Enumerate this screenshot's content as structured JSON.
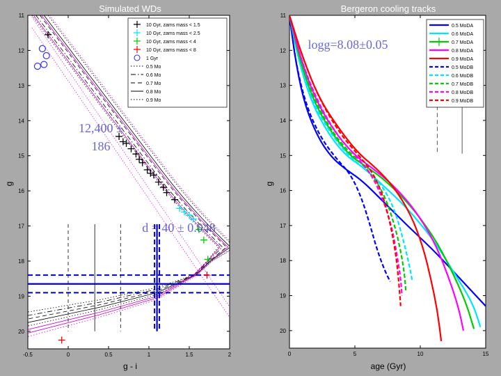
{
  "chart_data": [
    {
      "type": "scatter",
      "title": "Simulated WDs",
      "xlabel": "g - i",
      "ylabel": "g",
      "xlim": [
        -0.5,
        2
      ],
      "ylim": [
        20.5,
        11
      ],
      "y_inverted": true,
      "xticks": [
        "-0.5",
        "0",
        "0.5",
        "1",
        "1.5",
        "2"
      ],
      "xtick_values": [
        -0.5,
        0,
        0.5,
        1,
        1.5,
        2
      ],
      "yticks": [
        "11",
        "12",
        "13",
        "14",
        "15",
        "16",
        "17",
        "18",
        "19",
        "20"
      ],
      "ytick_values": [
        11,
        12,
        13,
        14,
        15,
        16,
        17,
        18,
        19,
        20
      ],
      "legend_position": "top-right",
      "legend": [
        {
          "label": "10 Gyr, zams mass < 1.5",
          "marker": "plus",
          "color": "#000000"
        },
        {
          "label": "10 Gyr, zams mass < 2.5",
          "marker": "plus",
          "color": "#00e5ff"
        },
        {
          "label": "10 Gyr, zams mass < 4",
          "marker": "plus",
          "color": "#00cc00"
        },
        {
          "label": "10 Gyr, zams mass < 8",
          "marker": "plus",
          "color": "#ff0000"
        },
        {
          "label": "1 Gyr",
          "marker": "circle",
          "color": "#3333ff"
        },
        {
          "label": "0.5 Mo",
          "line": "dotted",
          "color": "#000000"
        },
        {
          "label": "0.6 Mo",
          "line": "dashdot",
          "color": "#000000"
        },
        {
          "label": "0.7 Mo",
          "line": "dashed",
          "color": "#000000"
        },
        {
          "label": "0.8 Mo",
          "line": "solid",
          "color": "#000000"
        },
        {
          "label": "0.9 Mo",
          "line": "dotted",
          "color": "#000000"
        }
      ],
      "series": [
        {
          "name": "10 Gyr, zams mass < 1.5",
          "color": "#000000",
          "marker": "plus",
          "points": [
            [
              -0.25,
              11.55
            ],
            [
              0.63,
              14.45
            ],
            [
              0.68,
              14.6
            ],
            [
              0.72,
              14.65
            ],
            [
              0.78,
              14.8
            ],
            [
              0.84,
              14.95
            ],
            [
              0.88,
              15.1
            ],
            [
              0.92,
              15.2
            ],
            [
              0.98,
              15.4
            ],
            [
              1.02,
              15.5
            ],
            [
              1.06,
              15.55
            ],
            [
              1.12,
              15.75
            ],
            [
              1.18,
              15.9
            ],
            [
              1.22,
              16.05
            ],
            [
              1.32,
              16.25
            ]
          ]
        },
        {
          "name": "10 Gyr, zams mass < 2.5",
          "color": "#00e5ff",
          "marker": "plus",
          "points": [
            [
              1.38,
              16.5
            ],
            [
              1.44,
              16.6
            ],
            [
              1.5,
              16.7
            ],
            [
              1.55,
              16.8
            ]
          ]
        },
        {
          "name": "10 Gyr, zams mass < 4",
          "color": "#00cc00",
          "marker": "plus",
          "points": [
            [
              1.62,
              17.1
            ],
            [
              1.68,
              17.4
            ],
            [
              1.73,
              17.95
            ]
          ]
        },
        {
          "name": "10 Gyr, zams mass < 8",
          "color": "#ff0000",
          "marker": "plus",
          "points": [
            [
              -0.08,
              20.25
            ],
            [
              1.72,
              18.4
            ]
          ]
        },
        {
          "name": "1 Gyr",
          "color": "#3333ff",
          "marker": "circle",
          "points": [
            [
              -0.38,
              12.45
            ],
            [
              -0.3,
              12.4
            ],
            [
              -0.27,
              12.15
            ],
            [
              -0.32,
              11.95
            ]
          ]
        }
      ],
      "annotations": [
        {
          "text": "12,400 ±",
          "color": "#3333cc"
        },
        {
          "text": "186",
          "color": "#3333cc"
        },
        {
          "text": "d = 40 ± 0.048",
          "color": "#3333cc"
        }
      ]
    },
    {
      "type": "line",
      "title": "Bergeron cooling tracks",
      "xlabel": "age (Gyr)",
      "ylabel": "g",
      "xlim": [
        0,
        15
      ],
      "ylim": [
        20.5,
        11
      ],
      "y_inverted": true,
      "xticks": [
        "0",
        "5",
        "10",
        "15"
      ],
      "xtick_values": [
        0,
        5,
        10,
        15
      ],
      "yticks": [
        "11",
        "12",
        "13",
        "14",
        "15",
        "16",
        "17",
        "18",
        "19",
        "20"
      ],
      "ytick_values": [
        11,
        12,
        13,
        14,
        15,
        16,
        17,
        18,
        19,
        20
      ],
      "legend_position": "top-right",
      "series": [
        {
          "name": "0.5 MoDA",
          "color": "#0000ff",
          "dash": "solid",
          "points": [
            [
              0,
              11
            ],
            [
              0.5,
              12.4
            ],
            [
              1.2,
              13.6
            ],
            [
              2.2,
              14.5
            ],
            [
              3.2,
              15.05
            ],
            [
              4.3,
              15.4
            ],
            [
              5.5,
              15.7
            ],
            [
              7,
              16.25
            ],
            [
              9,
              17
            ],
            [
              11,
              17.7
            ],
            [
              13,
              18.5
            ],
            [
              15,
              19.3
            ]
          ]
        },
        {
          "name": "0.6 MoDA",
          "color": "#00e5ff",
          "dash": "solid",
          "points": [
            [
              0,
              11
            ],
            [
              0.7,
              12.3
            ],
            [
              1.7,
              13.5
            ],
            [
              3,
              14.4
            ],
            [
              4.3,
              15.0
            ],
            [
              5.5,
              15.3
            ],
            [
              7,
              15.8
            ],
            [
              9,
              16.5
            ],
            [
              11,
              17.4
            ],
            [
              12.5,
              18.3
            ],
            [
              14,
              19.2
            ],
            [
              14.6,
              19.9
            ]
          ]
        },
        {
          "name": "0.7 MoDA",
          "color": "#00cc00",
          "dash": "solid",
          "points": [
            [
              0,
              11
            ],
            [
              0.8,
              12.3
            ],
            [
              1.9,
              13.5
            ],
            [
              3.3,
              14.4
            ],
            [
              4.6,
              15.0
            ],
            [
              5.8,
              15.3
            ],
            [
              7.3,
              15.7
            ],
            [
              9.2,
              16.4
            ],
            [
              11,
              17.3
            ],
            [
              12.3,
              18.2
            ],
            [
              13.5,
              19.2
            ],
            [
              14.1,
              19.95
            ]
          ]
        },
        {
          "name": "0.8 MoDA",
          "color": "#ff00ff",
          "dash": "solid",
          "points": [
            [
              0,
              11
            ],
            [
              0.9,
              12.3
            ],
            [
              2.1,
              13.5
            ],
            [
              3.6,
              14.4
            ],
            [
              5,
              15.0
            ],
            [
              6.3,
              15.35
            ],
            [
              7.8,
              15.8
            ],
            [
              9.5,
              16.5
            ],
            [
              11,
              17.4
            ],
            [
              12,
              18.3
            ],
            [
              12.9,
              19.3
            ],
            [
              13.3,
              20.0
            ]
          ]
        },
        {
          "name": "0.9 MoDA",
          "color": "#ff0000",
          "dash": "solid",
          "points": [
            [
              0,
              11
            ],
            [
              1,
              12.2
            ],
            [
              2.3,
              13.4
            ],
            [
              3.9,
              14.3
            ],
            [
              5.3,
              14.95
            ],
            [
              6.6,
              15.35
            ],
            [
              8,
              15.9
            ],
            [
              9.3,
              16.7
            ],
            [
              10.2,
              17.6
            ],
            [
              10.8,
              18.5
            ],
            [
              11.3,
              19.4
            ],
            [
              11.6,
              20.3
            ]
          ]
        },
        {
          "name": "0.5 MoDB",
          "color": "#0000ff",
          "dash": "dashed",
          "points": [
            [
              0,
              11
            ],
            [
              0.5,
              12.4
            ],
            [
              1.3,
              13.6
            ],
            [
              2.4,
              14.5
            ],
            [
              3.6,
              15.1
            ],
            [
              4.6,
              15.5
            ],
            [
              5.4,
              16.1
            ],
            [
              6.1,
              16.9
            ],
            [
              6.7,
              17.7
            ],
            [
              7.3,
              18.3
            ],
            [
              7.7,
              18.6
            ]
          ]
        },
        {
          "name": "0.6 MoDB",
          "color": "#00e5ff",
          "dash": "dashed",
          "points": [
            [
              0,
              11
            ],
            [
              0.7,
              12.3
            ],
            [
              1.8,
              13.5
            ],
            [
              3.2,
              14.4
            ],
            [
              4.5,
              15.0
            ],
            [
              5.8,
              15.4
            ],
            [
              7,
              15.8
            ],
            [
              8,
              16.5
            ],
            [
              8.7,
              17.4
            ],
            [
              9.2,
              18.2
            ],
            [
              9.4,
              18.6
            ]
          ]
        },
        {
          "name": "0.7 MoDB",
          "color": "#00cc00",
          "dash": "dashed",
          "points": [
            [
              0,
              11
            ],
            [
              0.8,
              12.3
            ],
            [
              2,
              13.5
            ],
            [
              3.4,
              14.4
            ],
            [
              4.8,
              15.0
            ],
            [
              6,
              15.4
            ],
            [
              7.1,
              16.0
            ],
            [
              7.9,
              16.8
            ],
            [
              8.5,
              17.7
            ],
            [
              8.8,
              18.4
            ],
            [
              8.9,
              18.9
            ]
          ]
        },
        {
          "name": "0.8 MoDB",
          "color": "#ff00ff",
          "dash": "dashed",
          "points": [
            [
              0,
              11
            ],
            [
              0.9,
              12.3
            ],
            [
              2.2,
              13.5
            ],
            [
              3.6,
              14.4
            ],
            [
              5,
              15.0
            ],
            [
              6.2,
              15.5
            ],
            [
              7.1,
              16.2
            ],
            [
              7.8,
              17.0
            ],
            [
              8.2,
              17.8
            ],
            [
              8.5,
              18.5
            ],
            [
              8.6,
              19.0
            ]
          ]
        },
        {
          "name": "0.9 MoDB",
          "color": "#ff0000",
          "dash": "dashed",
          "points": [
            [
              0,
              11
            ],
            [
              1,
              12.2
            ],
            [
              2.3,
              13.4
            ],
            [
              3.9,
              14.4
            ],
            [
              5.3,
              15.0
            ],
            [
              6.4,
              15.5
            ],
            [
              7.2,
              16.2
            ],
            [
              7.8,
              17.1
            ],
            [
              8.2,
              18.0
            ],
            [
              8.4,
              18.8
            ],
            [
              8.5,
              19.3
            ]
          ]
        }
      ],
      "annotations": [
        {
          "text": "logg=8.08±0.05",
          "color": "#3333cc"
        }
      ]
    }
  ]
}
